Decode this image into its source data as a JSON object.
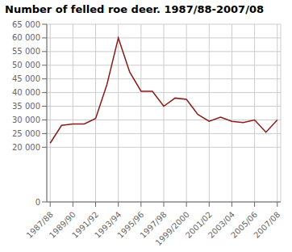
{
  "chart_data": {
    "type": "line",
    "title": "Number of felled roe deer. 1987/88-2007/08",
    "x": [
      0,
      1,
      2,
      3,
      4,
      5,
      6,
      7,
      8,
      9,
      10,
      11,
      12,
      13,
      14,
      15,
      16,
      17,
      18,
      19,
      20
    ],
    "values": [
      21500,
      28000,
      28500,
      28500,
      30500,
      43000,
      60000,
      47500,
      40500,
      40500,
      35000,
      38000,
      37500,
      32000,
      29500,
      31000,
      29500,
      29000,
      30000,
      25500,
      30000
    ],
    "color": "#8b1a1a",
    "xlim": [
      -0.3,
      20.3
    ],
    "xticks": [
      {
        "value": 0,
        "label": "1987/88"
      },
      {
        "value": 2,
        "label": "1989/90"
      },
      {
        "value": 4,
        "label": "1991/92"
      },
      {
        "value": 6,
        "label": "1993/94"
      },
      {
        "value": 8,
        "label": "1995/96"
      },
      {
        "value": 10,
        "label": "1997/98"
      },
      {
        "value": 12,
        "label": "1999/2000"
      },
      {
        "value": 14,
        "label": "2001/02"
      },
      {
        "value": 16,
        "label": "2003/04"
      },
      {
        "value": 18,
        "label": "2005/06"
      },
      {
        "value": 20,
        "label": "2007/08"
      }
    ],
    "ylim": [
      0,
      65000
    ],
    "yticks": [
      0,
      {
        "value": 20000,
        "label": "20 000"
      },
      {
        "value": 25000,
        "label": "25 000"
      },
      {
        "value": 30000,
        "label": "30 000"
      },
      {
        "value": 35000,
        "label": "35 000"
      },
      {
        "value": 40000,
        "label": "40 000"
      },
      {
        "value": 45000,
        "label": "45 000"
      },
      {
        "value": 50000,
        "label": "50 000"
      },
      {
        "value": 55000,
        "label": "55 000"
      },
      {
        "value": 60000,
        "label": "60 000"
      },
      {
        "value": 65000,
        "label": "65 000"
      }
    ],
    "grid": true
  }
}
